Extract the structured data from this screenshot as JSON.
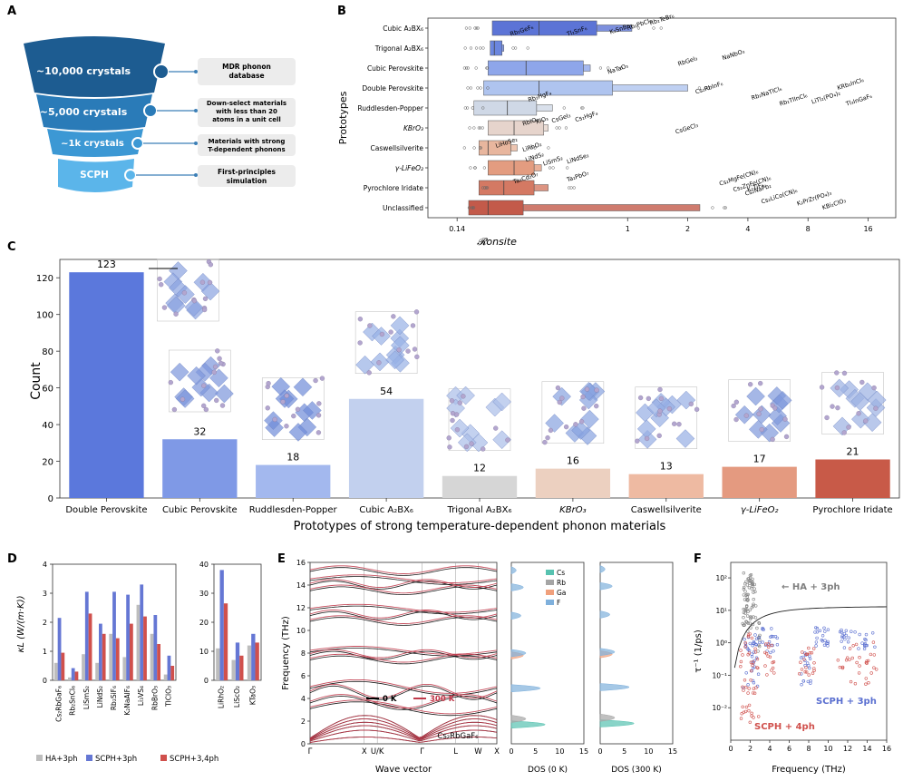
{
  "panels": {
    "A": "A",
    "B": "B",
    "C": "C",
    "D": "D",
    "E": "E",
    "F": "F"
  },
  "panel_a": {
    "funnel": [
      {
        "label": "~10,000 crystals",
        "color": "#1d5c91",
        "desc": "MDR phonon database"
      },
      {
        "label": "~5,000 crystals",
        "color": "#2a7bb8",
        "desc": "Down-select materials with less than 20 atoms in a unit cell"
      },
      {
        "label": "~1k crystals",
        "color": "#3c98d4",
        "desc": "Materials with strong T-dependent phonons"
      },
      {
        "label": "SCPH",
        "color": "#5bb5ea",
        "desc": "First-principles simulation"
      }
    ]
  },
  "chart_data": [
    {
      "type": "box",
      "panel": "B",
      "xlabel": "𝓡onsite",
      "ylabel": "Prototypes",
      "xscale": "log",
      "xlim": [
        0.1,
        22
      ],
      "xticks": [
        "0.14",
        "1",
        "2",
        "4",
        "8",
        "16"
      ],
      "categories": [
        "Cubic A₂BX₆",
        "Trigonal A₂BX₆",
        "Cubic Perovskite",
        "Double Perovskite",
        "Ruddlesden-Popper",
        "KBrO₃",
        "Caswellsilverite",
        "γ-LiFeO₂",
        "Pyrochlore Iridate",
        "Unclassified"
      ],
      "colors": [
        "#5c74d6",
        "#6b86de",
        "#8ea6ea",
        "#afc4ef",
        "#cfd8e6",
        "#e6d4cc",
        "#e8b69e",
        "#e39c80",
        "#d47963",
        "#c35a4a"
      ],
      "boxes": [
        {
          "q1": 0.21,
          "median": 0.36,
          "q3": 0.7,
          "whisker_hi": 1.05
        },
        {
          "q1": 0.205,
          "median": 0.215,
          "q3": 0.235,
          "whisker_hi": 0.24
        },
        {
          "q1": 0.2,
          "median": 0.31,
          "q3": 0.6,
          "whisker_hi": 0.65
        },
        {
          "q1": 0.19,
          "median": 0.36,
          "q3": 0.84,
          "whisker_hi": 2.0
        },
        {
          "q1": 0.17,
          "median": 0.25,
          "q3": 0.35,
          "whisker_hi": 0.42
        },
        {
          "q1": 0.2,
          "median": 0.27,
          "q3": 0.38,
          "whisker_hi": 0.4
        },
        {
          "q1": 0.18,
          "median": 0.2,
          "q3": 0.26,
          "whisker_hi": 0.28
        },
        {
          "q1": 0.2,
          "median": 0.27,
          "q3": 0.34,
          "whisker_hi": 0.37
        },
        {
          "q1": 0.18,
          "median": 0.24,
          "q3": 0.34,
          "whisker_hi": 0.4
        },
        {
          "q1": 0.16,
          "median": 0.2,
          "q3": 0.3,
          "whisker_hi": 2.3
        }
      ],
      "annotations": [
        {
          "text": "Rb₂GeF₆",
          "x": 0.26,
          "row": 0.4
        },
        {
          "text": "Tl₂SnF₆",
          "x": 0.5,
          "row": 0.4
        },
        {
          "text": "K₂SnBr₆",
          "x": 0.82,
          "row": 0.3
        },
        {
          "text": "Rb₂PbCl₆",
          "x": 1.0,
          "row": 0.1
        },
        {
          "text": "Rb₂TeBr₆",
          "x": 1.3,
          "row": -0.15
        },
        {
          "text": "NaTaO₃",
          "x": 0.8,
          "row": 2.3
        },
        {
          "text": "RbGeI₃",
          "x": 1.8,
          "row": 1.9
        },
        {
          "text": "NaNbO₃",
          "x": 3.0,
          "row": 1.6
        },
        {
          "text": "Rb₂HgF₄",
          "x": 0.32,
          "row": 3.7
        },
        {
          "text": "Cs₂RbInF₆",
          "x": 2.2,
          "row": 3.3
        },
        {
          "text": "Rb₂NaTlCl₆",
          "x": 4.2,
          "row": 3.6
        },
        {
          "text": "Rb₂TlInCl₆",
          "x": 5.8,
          "row": 3.9
        },
        {
          "text": "LiTl₂(PO₄)₂",
          "x": 8.4,
          "row": 3.8
        },
        {
          "text": "KRb₂InCl₆",
          "x": 11.3,
          "row": 3.1
        },
        {
          "text": "Tl₃InGaF₆",
          "x": 12.5,
          "row": 3.9
        },
        {
          "text": "RbIO₃",
          "x": 0.3,
          "row": 4.9
        },
        {
          "text": "KIO₃",
          "x": 0.35,
          "row": 4.8
        },
        {
          "text": "CsGeI₃",
          "x": 0.42,
          "row": 4.75
        },
        {
          "text": "Cs₂HgF₄",
          "x": 0.55,
          "row": 4.7
        },
        {
          "text": "CsGeCl₃",
          "x": 1.75,
          "row": 5.3
        },
        {
          "text": "LiHoSe₂",
          "x": 0.22,
          "row": 6.0
        },
        {
          "text": "LiRhO₂",
          "x": 0.3,
          "row": 6.2
        },
        {
          "text": "LiNdS₂",
          "x": 0.31,
          "row": 6.7
        },
        {
          "text": "LiSmS₂",
          "x": 0.38,
          "row": 6.9
        },
        {
          "text": "LiNdSe₂",
          "x": 0.5,
          "row": 6.8
        },
        {
          "text": "Ta₂Cd₂O₇",
          "x": 0.27,
          "row": 7.8
        },
        {
          "text": "Ta₂PbO₇",
          "x": 0.5,
          "row": 7.7
        },
        {
          "text": "Cs₂MgFe(CN)₆",
          "x": 2.9,
          "row": 7.9
        },
        {
          "text": "Cs₂ZnFe(CN)₆",
          "x": 3.4,
          "row": 8.2
        },
        {
          "text": "Cs₂NaPb₂",
          "x": 3.9,
          "row": 8.4
        },
        {
          "text": "K₂TiF₆",
          "x": 4.0,
          "row": 8.2
        },
        {
          "text": "Cs₂LiCo(CN)₆",
          "x": 4.7,
          "row": 8.8
        },
        {
          "text": "K₂PrZr(PO₄)₃",
          "x": 7.1,
          "row": 8.9
        },
        {
          "text": "KBi₂ClO₃",
          "x": 9.5,
          "row": 9.1
        }
      ]
    },
    {
      "type": "bar",
      "panel": "C",
      "xlabel": "Prototypes of strong temperature-dependent phonon materials",
      "ylabel": "Count",
      "ylim": [
        0,
        130
      ],
      "yticks": [
        0,
        20,
        40,
        60,
        80,
        100,
        120
      ],
      "categories": [
        "Double Perovskite",
        "Cubic Perovskite",
        "Ruddlesden-Popper",
        "Cubic A₂BX₆",
        "Trigonal A₂BX₆",
        "KBrO₃",
        "Caswellsilverite",
        "γ-LiFeO₂",
        "Pyrochlore Iridate"
      ],
      "values": [
        123,
        32,
        18,
        54,
        12,
        16,
        13,
        17,
        21
      ],
      "colors": [
        "#5b78dc",
        "#7f99e6",
        "#a3b8ee",
        "#c2d0ee",
        "#d6d6d6",
        "#ecd0c0",
        "#eebaa2",
        "#e49a80",
        "#c85a48"
      ]
    },
    {
      "type": "bar",
      "panel": "D",
      "ylabel": "κL (W/(m·K))",
      "ylim_left": [
        0,
        4
      ],
      "ylim_right": [
        0,
        40
      ],
      "categories_left": [
        "Cs₂RbGaF₆",
        "Rb₂SnCl₆",
        "LiSmS₂",
        "LiNdS₂",
        "Rb₂SiF₆",
        "K₂NaAlF₆",
        "Li₃VS₄",
        "RbBrO₃",
        "TlClO₃"
      ],
      "categories_right": [
        "LiRhO₂",
        "LiScO₂",
        "KTaO₃"
      ],
      "series": [
        {
          "name": "HA+3ph",
          "color": "#bdbdbd",
          "left": [
            0.6,
            0.1,
            0.9,
            0.6,
            1.6,
            0.8,
            2.6,
            1.6,
            0.2
          ],
          "right": [
            11,
            7,
            12
          ]
        },
        {
          "name": "SCPH+3ph",
          "color": "#6577d4",
          "left": [
            2.15,
            0.42,
            3.05,
            1.95,
            3.05,
            2.95,
            3.3,
            2.25,
            0.85
          ],
          "right": [
            38,
            13,
            16
          ]
        },
        {
          "name": "SCPH+3,4ph",
          "color": "#d0504c",
          "left": [
            0.95,
            0.3,
            2.3,
            1.6,
            1.45,
            1.95,
            2.2,
            1.25,
            0.5
          ],
          "right": [
            26.5,
            8.5,
            13
          ]
        }
      ]
    },
    {
      "type": "line",
      "panel": "E",
      "title": "Cs₂RbGaF₆",
      "xlabel": "Wave vector",
      "ylabel": "Frequency (THz)",
      "ylim": [
        0,
        16
      ],
      "yticks": [
        0,
        2,
        4,
        6,
        8,
        10,
        12,
        14,
        16
      ],
      "xticks": [
        "Γ",
        "X",
        "U/K",
        "Γ",
        "L",
        "W",
        "X"
      ],
      "series": [
        {
          "name": "0 K",
          "color": "#000000"
        },
        {
          "name": "300 K",
          "color": "#c0394a"
        }
      ],
      "dos_titles": [
        "DOS (0 K)",
        "DOS (300 K)"
      ],
      "dos_xlim": [
        0,
        15
      ],
      "dos_xticks": [
        "0",
        "5",
        "10",
        "15"
      ],
      "dos_legend": [
        {
          "name": "Cs",
          "color": "#57c2b0"
        },
        {
          "name": "Rb",
          "color": "#a5a5a5"
        },
        {
          "name": "Ga",
          "color": "#f0a07c"
        },
        {
          "name": "F",
          "color": "#7fb0dc"
        }
      ]
    },
    {
      "type": "scatter",
      "panel": "F",
      "xlabel": "Frequency (THz)",
      "ylabel": "τ⁻¹ (1/ps)",
      "yscale": "log",
      "xlim": [
        0,
        16
      ],
      "ylim": [
        0.001,
        300
      ],
      "xticks": [
        0,
        2,
        4,
        6,
        8,
        10,
        12,
        14,
        16
      ],
      "yticks": [
        "10⁻²",
        "10⁻¹",
        "10⁰",
        "10¹",
        "10²"
      ],
      "series": [
        {
          "name": "HA + 3ph",
          "color": "#7f7f7f"
        },
        {
          "name": "SCPH + 3ph",
          "color": "#5a6fd0"
        },
        {
          "name": "SCPH + 4ph",
          "color": "#d0504c"
        }
      ]
    }
  ]
}
